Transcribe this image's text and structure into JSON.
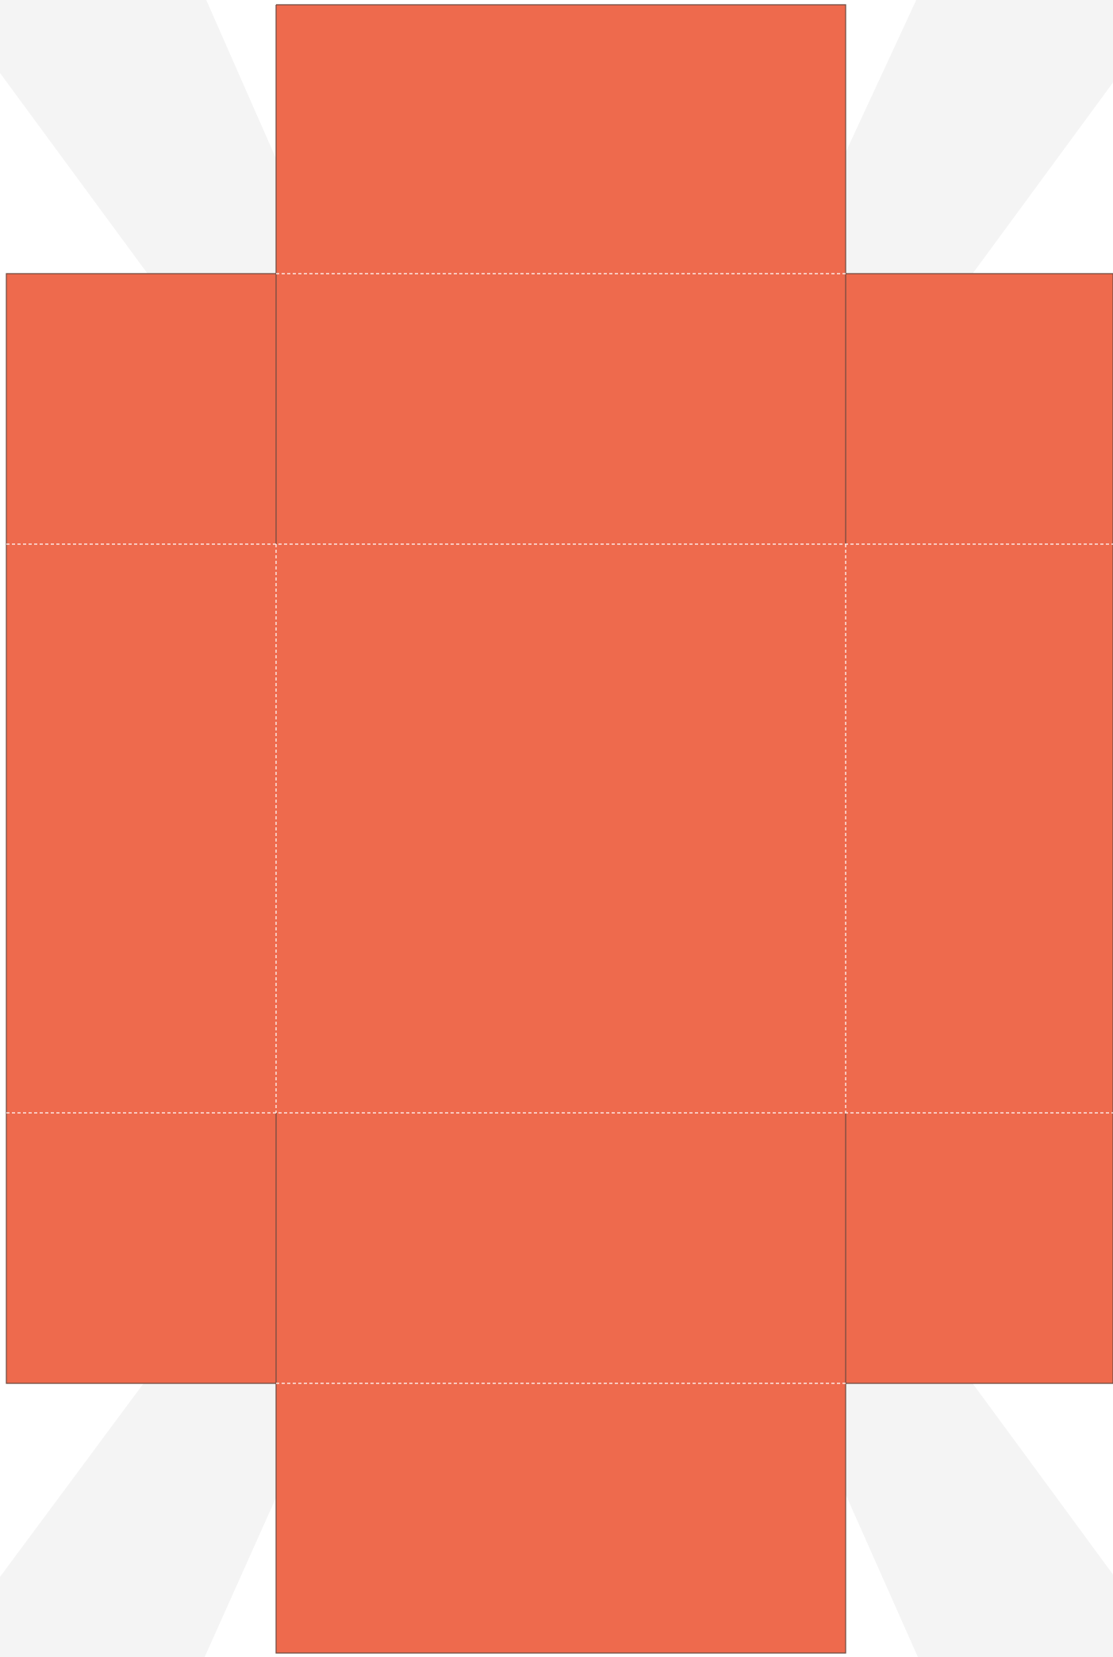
{
  "colors": {
    "background": "#ffffff",
    "background_pattern": "#f4f4f4",
    "net_fill": "#ee6a4d",
    "outline": "#6b4a40",
    "fold_line": "#ffffff"
  },
  "net": {
    "shape": "open box net (cross pattern with side flaps)",
    "cut_line_style": "solid",
    "fold_line_style": "dashed",
    "panels": [
      "top-flap",
      "back-panel",
      "left-side-panel",
      "base-panel",
      "right-side-panel",
      "front-panel",
      "bottom-flap",
      "left-upper-tab",
      "right-upper-tab",
      "left-lower-tab",
      "right-lower-tab"
    ]
  }
}
